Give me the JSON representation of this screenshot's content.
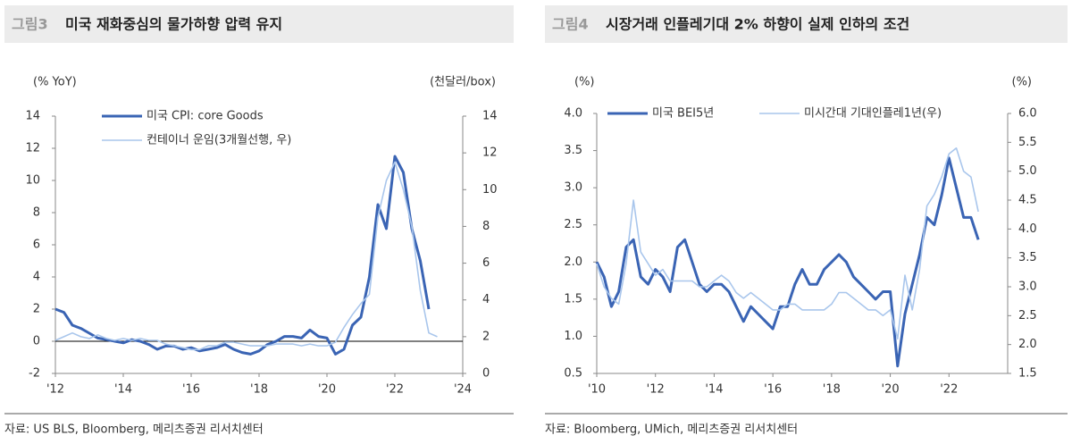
{
  "chart_data": [
    {
      "type": "line",
      "label": "그림3",
      "title": "미국 재화중심의 물가하향 압력 유지",
      "y_label": "(% YoY)",
      "y2_label": "(천달러/box)",
      "source": "자료: US BLS, Bloomberg, 메리츠증권 리서치센터",
      "x": [
        2012,
        2012.25,
        2012.5,
        2012.75,
        2013,
        2013.25,
        2013.5,
        2013.75,
        2014,
        2014.25,
        2014.5,
        2014.75,
        2015,
        2015.25,
        2015.5,
        2015.75,
        2016,
        2016.25,
        2016.5,
        2016.75,
        2017,
        2017.25,
        2017.5,
        2017.75,
        2018,
        2018.25,
        2018.5,
        2018.75,
        2019,
        2019.25,
        2019.5,
        2019.75,
        2020,
        2020.25,
        2020.5,
        2020.75,
        2021,
        2021.25,
        2021.5,
        2021.75,
        2022,
        2022.25,
        2022.5,
        2022.75,
        2023,
        2023.25
      ],
      "series": [
        {
          "name": "미국 CPI: core Goods",
          "color": "#3a64b4",
          "width": 3,
          "values": [
            2.0,
            1.8,
            1.0,
            0.8,
            0.5,
            0.2,
            0.1,
            0.0,
            -0.1,
            0.1,
            0.0,
            -0.2,
            -0.5,
            -0.3,
            -0.3,
            -0.5,
            -0.4,
            -0.6,
            -0.5,
            -0.4,
            -0.2,
            -0.5,
            -0.7,
            -0.8,
            -0.6,
            -0.2,
            0.0,
            0.3,
            0.3,
            0.2,
            0.7,
            0.3,
            0.2,
            -0.8,
            -0.5,
            1.0,
            1.5,
            4.0,
            8.5,
            7.0,
            11.5,
            10.5,
            7.0,
            5.0,
            2.0,
            null
          ]
        },
        {
          "name": "컨테이너 운임(3개월선행, 우)",
          "color": "#a9c6ec",
          "width": 1.6,
          "axis": "y2",
          "values": [
            1.8,
            2.0,
            2.2,
            2.0,
            1.9,
            2.1,
            1.9,
            1.8,
            1.9,
            1.8,
            1.9,
            1.8,
            1.8,
            1.6,
            1.5,
            1.4,
            1.3,
            1.3,
            1.5,
            1.5,
            1.7,
            1.7,
            1.6,
            1.5,
            1.5,
            1.5,
            1.6,
            1.6,
            1.6,
            1.5,
            1.6,
            1.5,
            1.5,
            1.7,
            2.5,
            3.2,
            3.8,
            4.3,
            8.5,
            10.5,
            11.5,
            10.0,
            8.0,
            4.5,
            2.2,
            2.0
          ]
        }
      ],
      "xlim": [
        2012,
        2024
      ],
      "xticks": [
        {
          "value": 2012,
          "label": "'12"
        },
        {
          "value": 2014,
          "label": "'14"
        },
        {
          "value": 2016,
          "label": "'16"
        },
        {
          "value": 2018,
          "label": "'18"
        },
        {
          "value": 2020,
          "label": "'20"
        },
        {
          "value": 2022,
          "label": "'22"
        },
        {
          "value": 2024,
          "label": "'24"
        }
      ],
      "ylim": [
        -2,
        14
      ],
      "yticks": [
        -2,
        0,
        2,
        4,
        6,
        8,
        10,
        12,
        14
      ],
      "y2lim": [
        0,
        14
      ],
      "y2ticks": [
        0,
        2,
        4,
        6,
        8,
        10,
        12,
        14
      ],
      "zero_line": true,
      "legend": "top-left-stacked"
    },
    {
      "type": "line",
      "label": "그림4",
      "title": "시장거래 인플레기대 2% 하향이 실제 인하의 조건",
      "y_label": "(%)",
      "y2_label": "(%)",
      "source": "자료: Bloomberg, UMich, 메리츠증권 리서치센터",
      "x": [
        2010,
        2010.25,
        2010.5,
        2010.75,
        2011,
        2011.25,
        2011.5,
        2011.75,
        2012,
        2012.25,
        2012.5,
        2012.75,
        2013,
        2013.25,
        2013.5,
        2013.75,
        2014,
        2014.25,
        2014.5,
        2014.75,
        2015,
        2015.25,
        2015.5,
        2015.75,
        2016,
        2016.25,
        2016.5,
        2016.75,
        2017,
        2017.25,
        2017.5,
        2017.75,
        2018,
        2018.25,
        2018.5,
        2018.75,
        2019,
        2019.25,
        2019.5,
        2019.75,
        2020,
        2020.25,
        2020.5,
        2020.75,
        2021,
        2021.25,
        2021.5,
        2021.75,
        2022,
        2022.25,
        2022.5,
        2022.75,
        2023
      ],
      "series": [
        {
          "name": "미국 BEI5년",
          "color": "#3a64b4",
          "width": 3,
          "values": [
            2.0,
            1.8,
            1.4,
            1.6,
            2.2,
            2.3,
            1.8,
            1.7,
            1.9,
            1.8,
            1.6,
            2.2,
            2.3,
            2.0,
            1.7,
            1.6,
            1.7,
            1.7,
            1.6,
            1.4,
            1.2,
            1.4,
            1.3,
            1.2,
            1.1,
            1.4,
            1.4,
            1.7,
            1.9,
            1.7,
            1.7,
            1.9,
            2.0,
            2.1,
            2.0,
            1.8,
            1.7,
            1.6,
            1.5,
            1.6,
            1.6,
            0.6,
            1.3,
            1.7,
            2.1,
            2.6,
            2.5,
            2.9,
            3.4,
            3.0,
            2.6,
            2.6,
            2.3
          ]
        },
        {
          "name": "미시간대 기대인플레1년(우)",
          "color": "#a9c6ec",
          "width": 1.6,
          "axis": "y2",
          "values": [
            3.4,
            3.0,
            2.8,
            2.7,
            3.4,
            4.5,
            3.6,
            3.4,
            3.2,
            3.3,
            3.1,
            3.1,
            3.1,
            3.1,
            3.0,
            3.0,
            3.1,
            3.2,
            3.1,
            2.9,
            2.8,
            2.9,
            2.8,
            2.7,
            2.6,
            2.6,
            2.7,
            2.7,
            2.6,
            2.6,
            2.6,
            2.6,
            2.7,
            2.9,
            2.9,
            2.8,
            2.7,
            2.6,
            2.6,
            2.5,
            2.6,
            2.1,
            3.2,
            2.6,
            3.3,
            4.4,
            4.6,
            4.9,
            5.3,
            5.4,
            5.0,
            4.9,
            4.3
          ]
        }
      ],
      "xlim": [
        2010,
        2024
      ],
      "xticks": [
        {
          "value": 2010,
          "label": "'10"
        },
        {
          "value": 2012,
          "label": "'12"
        },
        {
          "value": 2014,
          "label": "'14"
        },
        {
          "value": 2016,
          "label": "'16"
        },
        {
          "value": 2018,
          "label": "'18"
        },
        {
          "value": 2020,
          "label": "'20"
        },
        {
          "value": 2022,
          "label": "'22"
        }
      ],
      "ylim": [
        0.5,
        4.0
      ],
      "yticks": [
        0.5,
        {
          "value": 1,
          "label": "1.0"
        },
        1.5,
        {
          "value": 2,
          "label": "2.0"
        },
        2.5,
        {
          "value": 3,
          "label": "3.0"
        },
        3.5,
        {
          "value": 4,
          "label": "4.0"
        }
      ],
      "y2lim": [
        1.5,
        6.0
      ],
      "y2ticks": [
        1.5,
        {
          "value": 2,
          "label": "2.0"
        },
        2.5,
        {
          "value": 3,
          "label": "3.0"
        },
        3.5,
        {
          "value": 4,
          "label": "4.0"
        },
        4.5,
        {
          "value": 5,
          "label": "5.0"
        },
        5.5,
        {
          "value": 6,
          "label": "6.0"
        }
      ],
      "zero_line": false,
      "legend": "top-row"
    }
  ]
}
